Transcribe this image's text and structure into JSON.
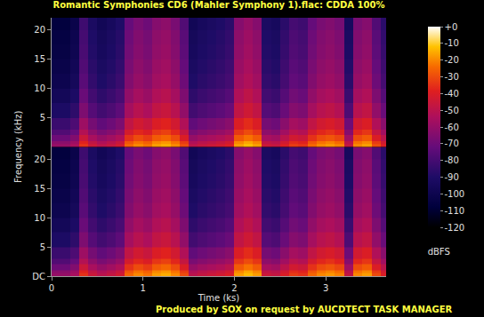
{
  "chart_data": {
    "type": "heatmap",
    "title": "Romantic Symphonies CD6 (Mahler Symphony 1).flac: CDDA 100%",
    "x_label": "Time (ks)",
    "y_label": "Frequency (kHz)",
    "footer": "Produced by SOX on request by AUCDTECT TASK MANAGER",
    "xlim": [
      0,
      3.66
    ],
    "xticks": [
      0,
      1,
      2,
      3
    ],
    "ylim": [
      0,
      22.05
    ],
    "x_edges": [
      0,
      0.1,
      0.2,
      0.3,
      0.4,
      0.5,
      0.6,
      0.7,
      0.8,
      0.9,
      1.0,
      1.1,
      1.2,
      1.3,
      1.4,
      1.5,
      1.6,
      1.7,
      1.8,
      1.9,
      2.0,
      2.1,
      2.2,
      2.3,
      2.4,
      2.5,
      2.6,
      2.7,
      2.8,
      2.9,
      3.0,
      3.1,
      3.2,
      3.3,
      3.4,
      3.5,
      3.6,
      3.66
    ],
    "y_edges": [
      0,
      0.5,
      1,
      2,
      3,
      5,
      7.5,
      10,
      12.5,
      15,
      17.5,
      20,
      22.05
    ],
    "colorbar": {
      "title": "dBFS",
      "range": [
        -120,
        0
      ],
      "ticks": [
        {
          "value": 0,
          "label": "+0"
        },
        -10,
        -20,
        -30,
        -40,
        -50,
        -60,
        -70,
        -80,
        -90,
        -100,
        -110,
        -120
      ]
    },
    "panels": [
      {
        "yticks": [
          5,
          10,
          15,
          20
        ],
        "cells": [
          [
            -60,
            -60,
            -55,
            -35,
            -45,
            -50,
            -47,
            -43,
            -25,
            -20,
            -23,
            -17,
            -15,
            -20,
            -30,
            -50,
            -47,
            -45,
            -43,
            -40,
            -17,
            -13,
            -17,
            -45,
            -47,
            -40,
            -33,
            -35,
            -25,
            -20,
            -18,
            -21,
            -47,
            -20,
            -17,
            -30,
            -40
          ],
          [
            -63,
            -63,
            -58,
            -38,
            -48,
            -53,
            -50,
            -46,
            -28,
            -23,
            -26,
            -20,
            -18,
            -23,
            -33,
            -53,
            -50,
            -48,
            -46,
            -43,
            -20,
            -16,
            -20,
            -48,
            -50,
            -43,
            -36,
            -38,
            -28,
            -23,
            -21,
            -24,
            -50,
            -23,
            -20,
            -33,
            -43
          ],
          [
            -70,
            -70,
            -65,
            -45,
            -55,
            -60,
            -57,
            -53,
            -35,
            -30,
            -33,
            -27,
            -25,
            -30,
            -40,
            -60,
            -57,
            -55,
            -53,
            -50,
            -27,
            -23,
            -27,
            -55,
            -57,
            -50,
            -43,
            -45,
            -35,
            -30,
            -28,
            -31,
            -57,
            -30,
            -27,
            -40,
            -50
          ],
          [
            -77,
            -77,
            -72,
            -52,
            -62,
            -67,
            -64,
            -60,
            -42,
            -37,
            -40,
            -34,
            -32,
            -37,
            -47,
            -67,
            -64,
            -62,
            -60,
            -57,
            -34,
            -30,
            -34,
            -62,
            -64,
            -57,
            -50,
            -52,
            -42,
            -37,
            -35,
            -38,
            -64,
            -37,
            -34,
            -47,
            -57
          ],
          [
            -83,
            -83,
            -78,
            -58,
            -68,
            -73,
            -70,
            -66,
            -48,
            -43,
            -46,
            -40,
            -38,
            -43,
            -53,
            -73,
            -70,
            -68,
            -66,
            -63,
            -40,
            -36,
            -40,
            -68,
            -70,
            -63,
            -56,
            -58,
            -48,
            -43,
            -41,
            -44,
            -70,
            -43,
            -40,
            -53,
            -63
          ],
          [
            -91,
            -91,
            -86,
            -66,
            -76,
            -81,
            -78,
            -74,
            -56,
            -51,
            -54,
            -48,
            -46,
            -51,
            -61,
            -81,
            -78,
            -76,
            -74,
            -71,
            -48,
            -44,
            -48,
            -76,
            -78,
            -71,
            -64,
            -66,
            -56,
            -51,
            -49,
            -52,
            -78,
            -51,
            -48,
            -61,
            -71
          ],
          [
            -96,
            -96,
            -91,
            -71,
            -81,
            -86,
            -83,
            -79,
            -61,
            -56,
            -59,
            -53,
            -51,
            -56,
            -66,
            -86,
            -83,
            -81,
            -79,
            -76,
            -53,
            -49,
            -53,
            -81,
            -83,
            -76,
            -69,
            -71,
            -61,
            -56,
            -54,
            -57,
            -83,
            -56,
            -53,
            -66,
            -76
          ],
          [
            -100,
            -100,
            -95,
            -75,
            -85,
            -90,
            -87,
            -83,
            -65,
            -60,
            -63,
            -57,
            -55,
            -60,
            -70,
            -90,
            -87,
            -85,
            -83,
            -80,
            -57,
            -53,
            -57,
            -85,
            -87,
            -80,
            -73,
            -75,
            -65,
            -60,
            -58,
            -61,
            -87,
            -60,
            -57,
            -70,
            -80
          ],
          [
            -102,
            -102,
            -97,
            -77,
            -87,
            -92,
            -89,
            -85,
            -67,
            -62,
            -65,
            -59,
            -57,
            -62,
            -72,
            -92,
            -89,
            -87,
            -85,
            -82,
            -59,
            -55,
            -59,
            -87,
            -89,
            -82,
            -75,
            -77,
            -67,
            -62,
            -60,
            -63,
            -89,
            -62,
            -59,
            -72,
            -82
          ],
          [
            -104,
            -104,
            -99,
            -79,
            -89,
            -94,
            -91,
            -87,
            -69,
            -64,
            -67,
            -61,
            -59,
            -64,
            -74,
            -94,
            -91,
            -89,
            -87,
            -84,
            -61,
            -57,
            -61,
            -89,
            -91,
            -84,
            -77,
            -79,
            -69,
            -64,
            -62,
            -65,
            -91,
            -64,
            -61,
            -74,
            -84
          ],
          [
            -105,
            -105,
            -100,
            -80,
            -90,
            -95,
            -92,
            -88,
            -70,
            -65,
            -68,
            -62,
            -60,
            -65,
            -75,
            -95,
            -92,
            -90,
            -88,
            -85,
            -62,
            -58,
            -62,
            -90,
            -92,
            -85,
            -78,
            -80,
            -70,
            -65,
            -63,
            -66,
            -92,
            -65,
            -62,
            -75,
            -85
          ],
          [
            -107,
            -107,
            -102,
            -82,
            -92,
            -97,
            -94,
            -90,
            -72,
            -67,
            -70,
            -64,
            -62,
            -67,
            -77,
            -97,
            -94,
            -92,
            -90,
            -87,
            -64,
            -60,
            -64,
            -92,
            -94,
            -87,
            -80,
            -82,
            -72,
            -67,
            -65,
            -68,
            -94,
            -67,
            -64,
            -77,
            -87
          ]
        ]
      },
      {
        "yticks": [
          {
            "value": 0,
            "label": "DC"
          },
          5,
          10,
          15,
          20
        ],
        "cells": [
          [
            -60,
            -60,
            -55,
            -35,
            -45,
            -50,
            -47,
            -43,
            -25,
            -20,
            -23,
            -17,
            -15,
            -20,
            -30,
            -50,
            -47,
            -45,
            -43,
            -40,
            -17,
            -13,
            -17,
            -45,
            -47,
            -40,
            -33,
            -35,
            -25,
            -20,
            -18,
            -21,
            -47,
            -20,
            -17,
            -30,
            -40
          ],
          [
            -63,
            -63,
            -58,
            -38,
            -48,
            -53,
            -50,
            -46,
            -28,
            -23,
            -26,
            -20,
            -18,
            -23,
            -33,
            -53,
            -50,
            -48,
            -46,
            -43,
            -20,
            -16,
            -20,
            -48,
            -50,
            -43,
            -36,
            -38,
            -28,
            -23,
            -21,
            -24,
            -50,
            -23,
            -20,
            -33,
            -43
          ],
          [
            -70,
            -70,
            -65,
            -45,
            -55,
            -60,
            -57,
            -53,
            -35,
            -30,
            -33,
            -27,
            -25,
            -30,
            -40,
            -60,
            -57,
            -55,
            -53,
            -50,
            -27,
            -23,
            -27,
            -55,
            -57,
            -50,
            -43,
            -45,
            -35,
            -30,
            -28,
            -31,
            -57,
            -30,
            -27,
            -40,
            -50
          ],
          [
            -77,
            -77,
            -72,
            -52,
            -62,
            -67,
            -64,
            -60,
            -42,
            -37,
            -40,
            -34,
            -32,
            -37,
            -47,
            -67,
            -64,
            -62,
            -60,
            -57,
            -34,
            -30,
            -34,
            -62,
            -64,
            -57,
            -50,
            -52,
            -42,
            -37,
            -35,
            -38,
            -64,
            -37,
            -34,
            -47,
            -57
          ],
          [
            -83,
            -83,
            -78,
            -58,
            -68,
            -73,
            -70,
            -66,
            -48,
            -43,
            -46,
            -40,
            -38,
            -43,
            -53,
            -73,
            -70,
            -68,
            -66,
            -63,
            -40,
            -36,
            -40,
            -68,
            -70,
            -63,
            -56,
            -58,
            -48,
            -43,
            -41,
            -44,
            -70,
            -43,
            -40,
            -53,
            -63
          ],
          [
            -91,
            -91,
            -86,
            -66,
            -76,
            -81,
            -78,
            -74,
            -56,
            -51,
            -54,
            -48,
            -46,
            -51,
            -61,
            -81,
            -78,
            -76,
            -74,
            -71,
            -48,
            -44,
            -48,
            -76,
            -78,
            -71,
            -64,
            -66,
            -56,
            -51,
            -49,
            -52,
            -78,
            -51,
            -48,
            -61,
            -71
          ],
          [
            -96,
            -96,
            -91,
            -71,
            -81,
            -86,
            -83,
            -79,
            -61,
            -56,
            -59,
            -53,
            -51,
            -56,
            -66,
            -86,
            -83,
            -81,
            -79,
            -76,
            -53,
            -49,
            -53,
            -81,
            -83,
            -76,
            -69,
            -71,
            -61,
            -56,
            -54,
            -57,
            -83,
            -56,
            -53,
            -66,
            -76
          ],
          [
            -100,
            -100,
            -95,
            -75,
            -85,
            -90,
            -87,
            -83,
            -65,
            -60,
            -63,
            -57,
            -55,
            -60,
            -70,
            -90,
            -87,
            -85,
            -83,
            -80,
            -57,
            -53,
            -57,
            -85,
            -87,
            -80,
            -73,
            -75,
            -65,
            -60,
            -58,
            -61,
            -87,
            -60,
            -57,
            -70,
            -80
          ],
          [
            -102,
            -102,
            -97,
            -77,
            -87,
            -92,
            -89,
            -85,
            -67,
            -62,
            -65,
            -59,
            -57,
            -62,
            -72,
            -92,
            -89,
            -87,
            -85,
            -82,
            -59,
            -55,
            -59,
            -87,
            -89,
            -82,
            -75,
            -77,
            -67,
            -62,
            -60,
            -63,
            -89,
            -62,
            -59,
            -72,
            -82
          ],
          [
            -104,
            -104,
            -99,
            -79,
            -89,
            -94,
            -91,
            -87,
            -69,
            -64,
            -67,
            -61,
            -59,
            -64,
            -74,
            -94,
            -91,
            -89,
            -87,
            -84,
            -61,
            -57,
            -61,
            -89,
            -91,
            -84,
            -77,
            -79,
            -69,
            -64,
            -62,
            -65,
            -91,
            -64,
            -61,
            -74,
            -84
          ],
          [
            -105,
            -105,
            -100,
            -80,
            -90,
            -95,
            -92,
            -88,
            -70,
            -65,
            -68,
            -62,
            -60,
            -65,
            -75,
            -95,
            -92,
            -90,
            -88,
            -85,
            -62,
            -58,
            -62,
            -90,
            -92,
            -85,
            -78,
            -80,
            -70,
            -65,
            -63,
            -66,
            -92,
            -65,
            -62,
            -75,
            -85
          ],
          [
            -107,
            -107,
            -102,
            -82,
            -92,
            -97,
            -94,
            -90,
            -72,
            -67,
            -70,
            -64,
            -62,
            -67,
            -77,
            -97,
            -94,
            -92,
            -90,
            -87,
            -64,
            -60,
            -64,
            -92,
            -94,
            -87,
            -80,
            -82,
            -72,
            -67,
            -65,
            -68,
            -94,
            -67,
            -64,
            -77,
            -87
          ]
        ]
      }
    ]
  }
}
